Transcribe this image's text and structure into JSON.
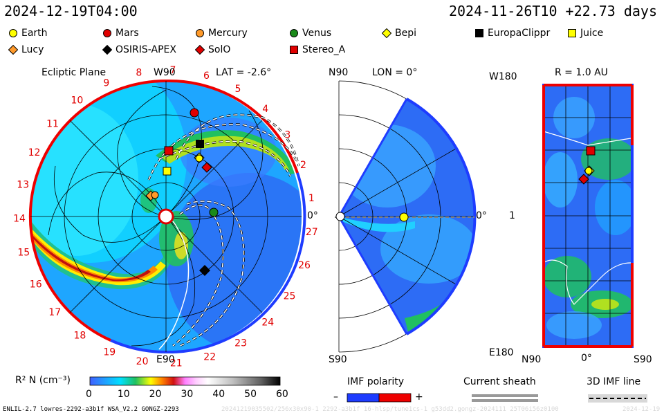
{
  "header": {
    "left_time": "2024-12-19T04:00",
    "right_time": "2024-11-26T10 +22.73 days"
  },
  "legend": {
    "spacecraft": [
      {
        "name": "Earth",
        "shape": "circle",
        "color": "#ffff00"
      },
      {
        "name": "Mars",
        "shape": "circle",
        "color": "#e00000"
      },
      {
        "name": "Mercury",
        "shape": "circle",
        "color": "#ff9a2a"
      },
      {
        "name": "Venus",
        "shape": "circle",
        "color": "#1a8a1a"
      },
      {
        "name": "Bepi",
        "shape": "diamond",
        "color": "#ffff00"
      },
      {
        "name": "EuropaClippr",
        "shape": "square",
        "color": "#000000"
      },
      {
        "name": "Juice",
        "shape": "square",
        "color": "#ffff00"
      },
      {
        "name": "Lucy",
        "shape": "diamond",
        "color": "#ff9a2a"
      },
      {
        "name": "OSIRIS-APEX",
        "shape": "diamond",
        "color": "#000000"
      },
      {
        "name": "SolO",
        "shape": "diamond",
        "color": "#e00000"
      },
      {
        "name": "Stereo_A",
        "shape": "square",
        "color": "#e00000"
      }
    ]
  },
  "panels": {
    "ecliptic": {
      "title": "Ecliptic Plane",
      "lat_label": "LAT = -2.6°",
      "top_label": "W90",
      "bottom_label": "E90",
      "right_label": "0°",
      "sector_numbers": [
        "1",
        "2",
        "3",
        "4",
        "5",
        "6",
        "7",
        "8",
        "9",
        "10",
        "11",
        "12",
        "13",
        "14",
        "15",
        "16",
        "17",
        "18",
        "19",
        "20",
        "21",
        "22",
        "23",
        "24",
        "25",
        "26",
        "27"
      ]
    },
    "meridian": {
      "lon_label": "LON = 0°",
      "top_label": "N90",
      "bottom_label": "S90",
      "right_label": "0°"
    },
    "radial": {
      "r_label": "R = 1.0 AU",
      "top_label": "W180",
      "bottom_label": "E180",
      "mid_label": "1",
      "x_labels": [
        "N90",
        "0°",
        "S90"
      ]
    }
  },
  "colorbar": {
    "label": "R² N (cm⁻³)",
    "ticks": [
      "0",
      "10",
      "20",
      "30",
      "40",
      "50",
      "60"
    ]
  },
  "imf": {
    "title": "IMF polarity",
    "minus": "–",
    "plus": "+"
  },
  "current_sheath": {
    "title": "Current sheath"
  },
  "imf_line": {
    "title": "3D IMF line"
  },
  "footer": {
    "left": "ENLIL-2.7 lowres-2292-a3b1f WSA_V2.2 GONGZ-2293",
    "middle": "20241219035502/256x30x90-1 2292-a3b1f 16-hlsp/tune1cs-1 g53dd2.gongz-2024111 25T06i56z0100",
    "right": "2024-12-19"
  },
  "colors": {
    "positive_polarity": "#ee0000",
    "negative_polarity": "#1e3cff"
  }
}
